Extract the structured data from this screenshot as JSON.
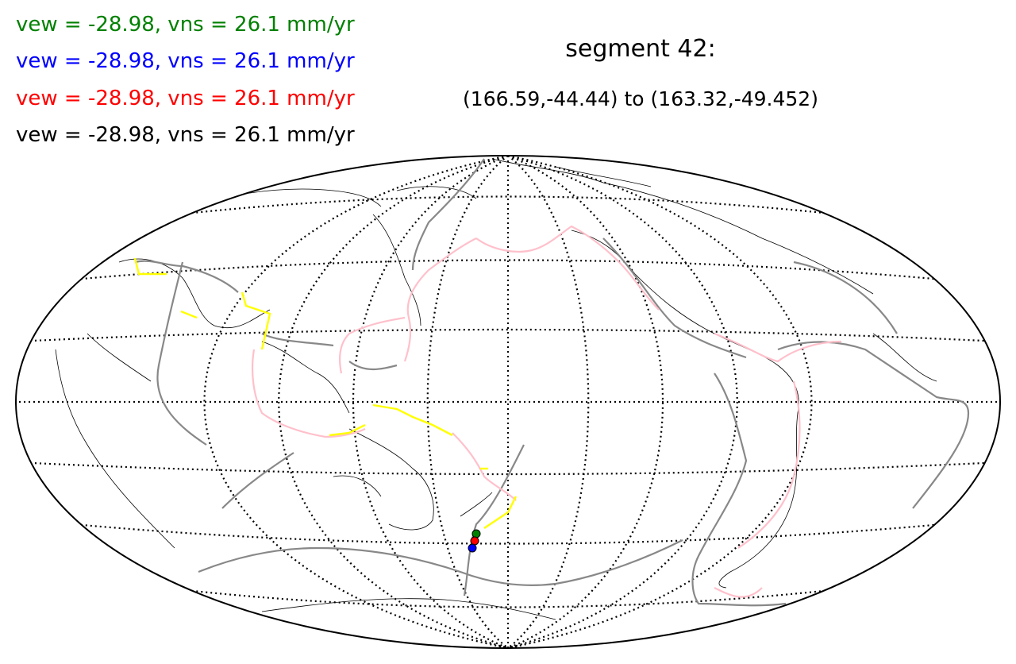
{
  "velocity_labels": [
    {
      "text": "vew = -28.98, vns = 26.1 mm/yr",
      "color": "#008000"
    },
    {
      "text": "vew = -28.98, vns = 26.1 mm/yr",
      "color": "#0000ff"
    },
    {
      "text": "vew = -28.98, vns = 26.1 mm/yr",
      "color": "#ff0000"
    },
    {
      "text": "vew = -28.98, vns = 26.1 mm/yr",
      "color": "#000000"
    }
  ],
  "segment": {
    "title": "segment 42:",
    "coords": "(166.59,-44.44)  to  (163.32,-49.452)"
  },
  "map": {
    "projection": "Hammer/Mollweide-style global, Pacific-centered",
    "graticule": "dotted",
    "boundary_colors": {
      "plate": "#888888",
      "subduction": "#ffc0cb",
      "highlight": "#ffff00"
    },
    "markers": [
      {
        "color": "#008000",
        "name": "green-point"
      },
      {
        "color": "#ff0000",
        "name": "red-point"
      },
      {
        "color": "#0000ff",
        "name": "blue-point"
      }
    ]
  }
}
